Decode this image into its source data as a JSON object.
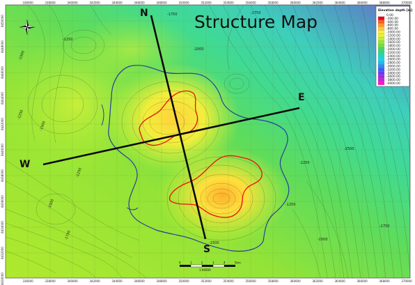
{
  "map": {
    "title": "Structure Map",
    "legend": {
      "title": "Elevation depth [m]",
      "items": [
        {
          "label": "0.00",
          "color": "#ffffff"
        },
        {
          "label": "-200.00",
          "color": "#e8001c"
        },
        {
          "label": "-400.00",
          "color": "#ff5a1e"
        },
        {
          "label": "-600.00",
          "color": "#ff9a28"
        },
        {
          "label": "-800.00",
          "color": "#ffc836"
        },
        {
          "label": "-1000.00",
          "color": "#ffee3c"
        },
        {
          "label": "-1200.00",
          "color": "#e4f43a"
        },
        {
          "label": "-1400.00",
          "color": "#bdf034"
        },
        {
          "label": "-1600.00",
          "color": "#96e834"
        },
        {
          "label": "-1800.00",
          "color": "#6ee23c"
        },
        {
          "label": "-2000.00",
          "color": "#46d862"
        },
        {
          "label": "-2200.00",
          "color": "#2ad690"
        },
        {
          "label": "-2400.00",
          "color": "#1ed8bc"
        },
        {
          "label": "-2600.00",
          "color": "#1cd4e4"
        },
        {
          "label": "-2800.00",
          "color": "#1eb8f4"
        },
        {
          "label": "-3000.00",
          "color": "#2a8cf8"
        },
        {
          "label": "-3200.00",
          "color": "#3c5cf8"
        },
        {
          "label": "-3400.00",
          "color": "#6a3cf0"
        },
        {
          "label": "-3600.00",
          "color": "#9c2ce4"
        },
        {
          "label": "-3800.00",
          "color": "#cc20d8"
        },
        {
          "label": "-4000.00",
          "color": "#ff16cc"
        }
      ]
    },
    "section_labels": {
      "north": "N",
      "south": "S",
      "east": "E",
      "west": "W"
    },
    "x_ticks": [
      "336000",
      "338000",
      "340000",
      "342000",
      "344000",
      "346000",
      "348000",
      "350000",
      "352000",
      "354000",
      "356000",
      "358000",
      "360000",
      "362000",
      "364000",
      "366000",
      "368000",
      "370000"
    ],
    "y_ticks": [
      "8450000",
      "8448000",
      "8446000",
      "8444000",
      "8442000",
      "8440000",
      "8438000",
      "8436000",
      "8434000",
      "8432000",
      "8430000"
    ],
    "contour_labels": [
      "-1250",
      "-1500",
      "-1500",
      "-1750",
      "-1750",
      "-2000",
      "-2250",
      "-2500",
      "-1500",
      "-1750",
      "-1500",
      "-1250",
      "-1250",
      "-1750",
      "-1250",
      "-1500"
    ],
    "scale_bar": {
      "labels": [
        "0",
        "1",
        "2",
        "3",
        "4",
        "5km"
      ],
      "ratio": "1:90000"
    },
    "colors": {
      "outline_blue": "#2a3c9a",
      "contour_red": "#e81010",
      "section_line": "#0a0a0a"
    },
    "compass": "compass-rose-icon"
  }
}
